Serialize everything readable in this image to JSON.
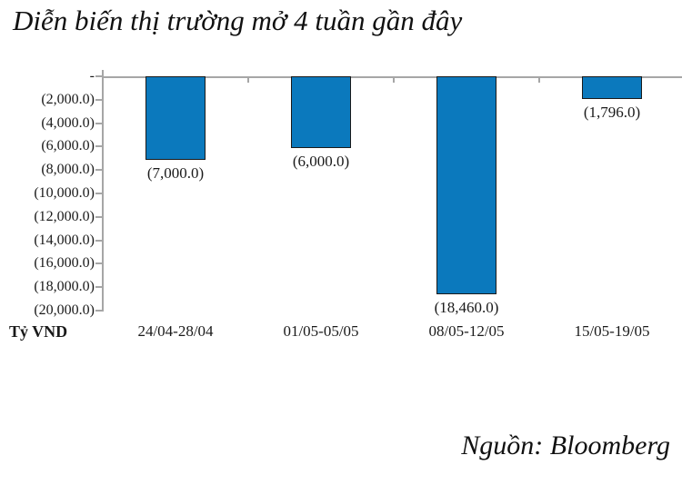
{
  "title": "Diễn biến thị trường mở 4 tuần gần đây",
  "source_note": "Nguồn: Bloomberg",
  "chart_data": {
    "type": "bar",
    "title": "Diễn biến thị trường mở 4 tuần gần đây",
    "unit_label": "Tỷ VND",
    "source": "Nguồn: Bloomberg",
    "categories": [
      "24/04-28/04",
      "01/05-05/05",
      "08/05-12/05",
      "15/05-19/05"
    ],
    "values": [
      -7000,
      -6000,
      -18460,
      -1796
    ],
    "data_labels": [
      "(7,000.0)",
      "(6,000.0)",
      "(18,460.0)",
      "(1,796.0)"
    ],
    "y_tick_labels": [
      "-",
      "(2,000.0)",
      "(4,000.0)",
      "(6,000.0)",
      "(8,000.0)",
      "(10,000.0)",
      "(12,000.0)",
      "(14,000.0)",
      "(16,000.0)",
      "(18,000.0)",
      "(20,000.0)"
    ],
    "ylim": [
      -20000,
      0
    ],
    "grid": false,
    "legend": false,
    "bar_color": "#0b79bd",
    "bar_border_color": "#1a1a1a",
    "axis_color": "#a6a6a6",
    "text_color": "#1a1a1a"
  }
}
